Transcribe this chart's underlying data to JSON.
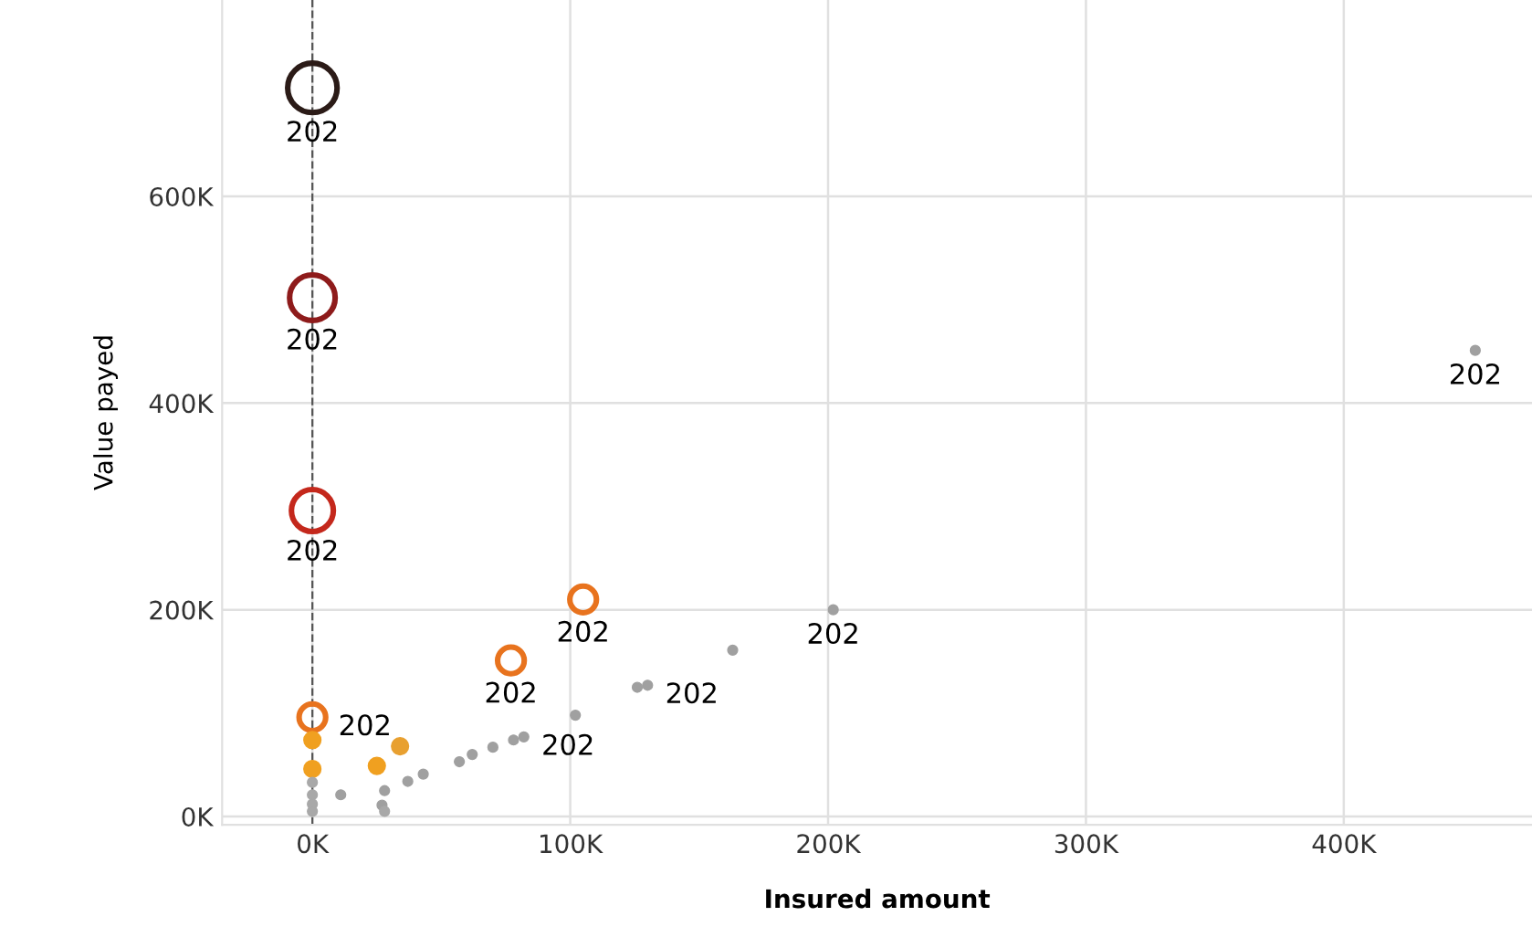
{
  "chart_data": {
    "type": "scatter",
    "xlabel": "Insured amount",
    "ylabel": "Value payed",
    "xlim": [
      -35000,
      473000
    ],
    "ylim": [
      -8000,
      790000
    ],
    "xticks": [
      {
        "value": 0,
        "label": "0K"
      },
      {
        "value": 100000,
        "label": "100K"
      },
      {
        "value": 200000,
        "label": "200K"
      },
      {
        "value": 300000,
        "label": "300K"
      },
      {
        "value": 400000,
        "label": "400K"
      }
    ],
    "yticks": [
      {
        "value": 0,
        "label": "0K"
      },
      {
        "value": 200000,
        "label": "200K"
      },
      {
        "value": 400000,
        "label": "400K"
      },
      {
        "value": 600000,
        "label": "600K"
      }
    ],
    "grid": true,
    "annotations": [
      {
        "text": "202",
        "x": 0,
        "y": 705000
      },
      {
        "text": "202",
        "x": 0,
        "y": 502000
      },
      {
        "text": "202",
        "x": 0,
        "y": 296000
      },
      {
        "text": "202",
        "x": 105000,
        "y": 210000
      },
      {
        "text": "202",
        "x": 77000,
        "y": 151000
      },
      {
        "text": "202",
        "x": 0,
        "y": 96000
      },
      {
        "text": "202",
        "x": 451000,
        "y": 451000
      },
      {
        "text": "202",
        "x": 202000,
        "y": 200000
      },
      {
        "text": "202",
        "x": 130000,
        "y": 127000
      },
      {
        "text": "202",
        "x": 82000,
        "y": 77000
      }
    ],
    "ref_lines": [
      {
        "axis": "x",
        "value": 0,
        "color": "#555555",
        "line_style": "dashed"
      }
    ],
    "series": [
      {
        "x": [
          0,
          0,
          0,
          105000,
          77000,
          0,
          0,
          0,
          34000,
          25000,
          451000,
          202000,
          163000,
          130000,
          126000,
          102000,
          82000,
          78000,
          70000,
          62000,
          57000,
          43000,
          37000,
          28000,
          27000,
          11000,
          0,
          0,
          0,
          0,
          28000
        ],
        "values": [
          705000,
          502000,
          296000,
          210000,
          151000,
          96000,
          74000,
          46000,
          68000,
          49000,
          451000,
          200000,
          161000,
          127000,
          125000,
          98000,
          77000,
          74000,
          67000,
          60000,
          53000,
          41000,
          34000,
          25000,
          11000,
          21000,
          33000,
          21000,
          12000,
          5000,
          5000
        ],
        "sizes": [
          1,
          0.85,
          0.72,
          0.29,
          0.29,
          0.29,
          0.12,
          0.12,
          0.12,
          0.12,
          0.04,
          0.04,
          0.04,
          0.04,
          0.04,
          0.04,
          0.04,
          0.04,
          0.04,
          0.04,
          0.04,
          0.04,
          0.04,
          0.04,
          0.04,
          0.04,
          0.04,
          0.04,
          0.04,
          0.04,
          0.04
        ],
        "colors": [
          "#2b1b17",
          "#8e1b1b",
          "#c4281c",
          "#e8731e",
          "#e8731e",
          "#e8731e",
          "#f0a020",
          "#f0a020",
          "#e8a030",
          "#f0a020",
          "#a0a0a0",
          "#a0a0a0",
          "#a0a0a0",
          "#a0a0a0",
          "#a0a0a0",
          "#a0a0a0",
          "#a0a0a0",
          "#a0a0a0",
          "#a0a0a0",
          "#a0a0a0",
          "#a0a0a0",
          "#a0a0a0",
          "#a0a0a0",
          "#a0a0a0",
          "#a0a0a0",
          "#a0a0a0",
          "#a8a8a8",
          "#a8a8a8",
          "#a8a8a8",
          "#a8a8a8",
          "#a8a8a8"
        ]
      }
    ]
  }
}
